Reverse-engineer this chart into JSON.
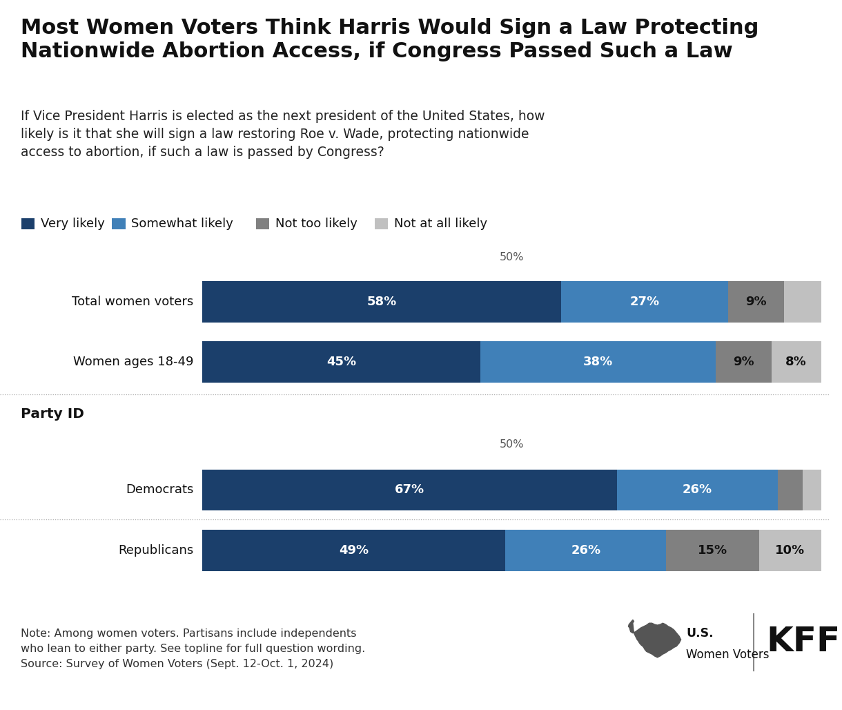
{
  "title": "Most Women Voters Think Harris Would Sign a Law Protecting\nNationwide Abortion Access, if Congress Passed Such a Law",
  "subtitle": "If Vice President Harris is elected as the next president of the United States, how\nlikely is it that she will sign a law restoring Roe v. Wade, protecting nationwide\naccess to abortion, if such a law is passed by Congress?",
  "legend_labels": [
    "Very likely",
    "Somewhat likely",
    "Not too likely",
    "Not at all likely"
  ],
  "legend_colors": [
    "#1b3f6b",
    "#4080b8",
    "#808080",
    "#c0c0c0"
  ],
  "categories": [
    "Total women voters",
    "Women ages 18-49",
    "Democrats",
    "Republicans"
  ],
  "values": [
    [
      58,
      27,
      9,
      6
    ],
    [
      45,
      38,
      9,
      8
    ],
    [
      67,
      26,
      4,
      3
    ],
    [
      49,
      26,
      15,
      10
    ]
  ],
  "show_labels": [
    [
      true,
      true,
      true,
      false
    ],
    [
      true,
      true,
      true,
      true
    ],
    [
      true,
      true,
      false,
      false
    ],
    [
      true,
      true,
      true,
      true
    ]
  ],
  "bar_colors": [
    "#1b3f6b",
    "#4080b8",
    "#808080",
    "#c0c0c0"
  ],
  "note_line1": "Note: Among women voters. Partisans include independents",
  "note_line2": "who lean to either party. See topline for full question wording.",
  "note_line3": "Source: Survey of Women Voters (Sept. 12-Oct. 1, 2024)",
  "background_color": "#ffffff",
  "bar_label_fontsize": 13,
  "category_fontsize": 13,
  "title_fontsize": 22,
  "subtitle_fontsize": 13.5,
  "legend_fontsize": 13,
  "note_fontsize": 11.5
}
